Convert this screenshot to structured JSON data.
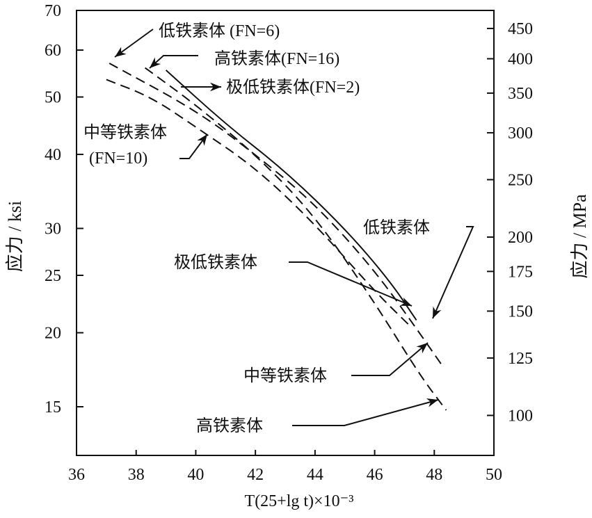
{
  "chart_data": {
    "type": "line",
    "xlabel": "T(25+lg t)×10⁻³",
    "ylabel": "应力 / ksi",
    "ylabel_right": "应力 / MPa",
    "xlim": [
      36,
      50
    ],
    "ylim": [
      12.2,
      70
    ],
    "yscale": "log",
    "xticks": [
      36,
      38,
      40,
      42,
      44,
      46,
      48,
      50
    ],
    "yticks": [
      70,
      60,
      50,
      40,
      30,
      25,
      20,
      15
    ],
    "yticks_right": [
      450,
      400,
      350,
      300,
      250,
      200,
      175,
      150,
      125,
      100
    ],
    "grid": false,
    "series": [
      {
        "name": "极低铁素体(FN=2)",
        "style": "solid",
        "x": [
          39,
          41,
          43,
          45,
          46.5,
          47.4
        ],
        "y": [
          55.5,
          45,
          37.5,
          30,
          24.5,
          21
        ]
      },
      {
        "name": "低铁素体(FN=6)",
        "style": "dashed",
        "x": [
          37.1,
          40,
          42,
          44,
          46,
          47.5,
          48.3
        ],
        "y": [
          57,
          47.5,
          40,
          33,
          25.5,
          20,
          17.5
        ]
      },
      {
        "name": "高铁素体(FN=16)",
        "style": "dashed",
        "x": [
          38.3,
          40,
          42,
          44,
          46,
          47.5,
          48.4
        ],
        "y": [
          56,
          48.5,
          40,
          31.5,
          22.5,
          17,
          14.8
        ]
      },
      {
        "name": "中等铁素体(FN=10)",
        "style": "dashed",
        "x": [
          37,
          38.5,
          40,
          42,
          44,
          46,
          47.2
        ],
        "y": [
          53.5,
          50,
          44.5,
          38,
          30.5,
          23.5,
          20.5
        ]
      }
    ],
    "annotations": [
      "低铁素体 (FN=6)",
      "高铁素体(FN=16)",
      "极低铁素体(FN=2)",
      "中等铁素体",
      "(FN=10)",
      "低铁素体",
      "极低铁素体",
      "中等铁素体",
      "高铁素体"
    ]
  }
}
